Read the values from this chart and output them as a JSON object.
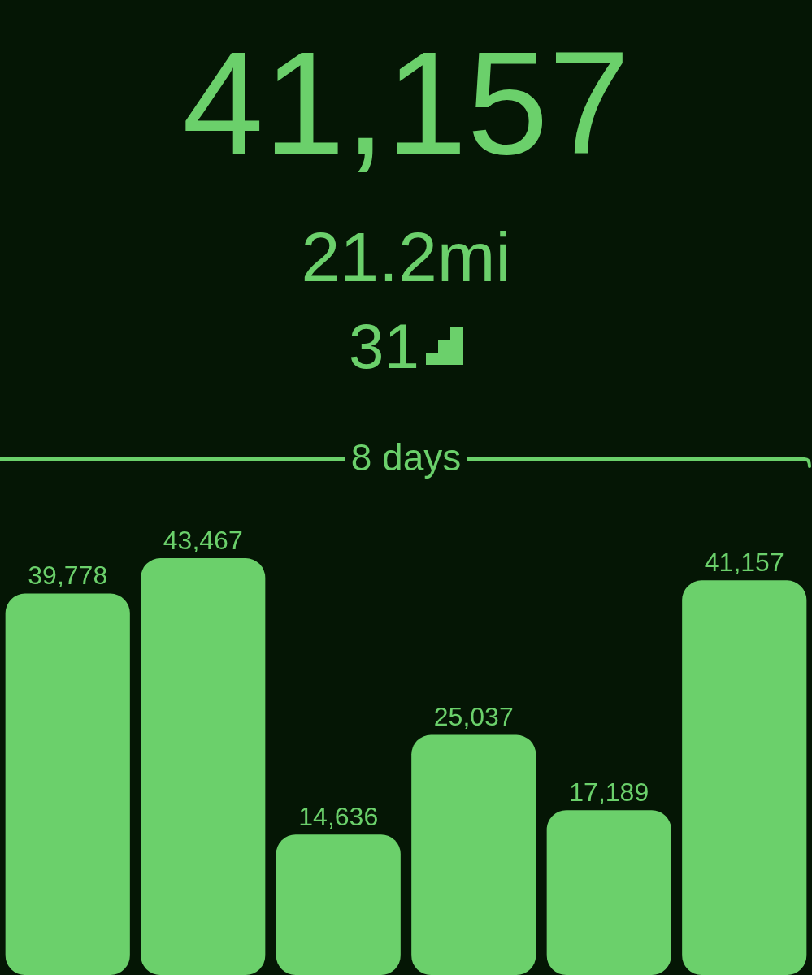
{
  "chart_data": {
    "type": "bar",
    "title": "41,157",
    "subtitle": "21.2mi",
    "annotations": [
      "31",
      "8 days"
    ],
    "categories": [
      null,
      null,
      null,
      null,
      null,
      null
    ],
    "values": [
      39778,
      43467,
      14636,
      25037,
      17189,
      41157
    ],
    "value_labels": [
      "39,778",
      "43,467",
      "14,636",
      "25,037",
      "17,189",
      "41,157"
    ],
    "color": "#6bd06b",
    "tick_labels": false
  }
}
